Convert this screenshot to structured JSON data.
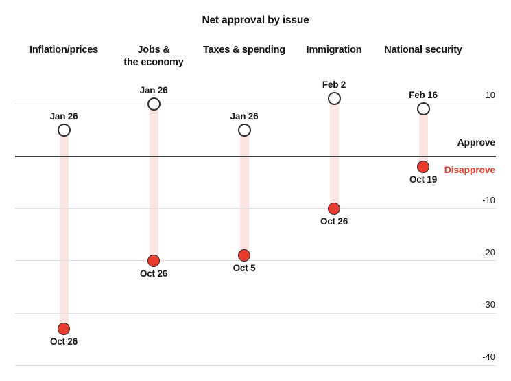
{
  "title": "Net approval by issue",
  "colors": {
    "red": "#e73b2d",
    "band_pink": "#fbe5e2",
    "gridline": "#e0e0e0",
    "zero_line": "#3d3d3d",
    "text": "#141414"
  },
  "axis": {
    "approve_label": "Approve",
    "disapprove_label": "Disapprove"
  },
  "chart_data": {
    "type": "dumbbell",
    "title": "Net approval by issue",
    "ylim": [
      -42,
      13
    ],
    "yticks": [
      {
        "value": 10,
        "label": "10"
      },
      {
        "value": -10,
        "label": "-10"
      },
      {
        "value": -20,
        "label": "-20"
      },
      {
        "value": -30,
        "label": "-30"
      },
      {
        "value": -40,
        "label": "-40"
      }
    ],
    "zero_line_value": 0,
    "legend": {
      "above_zero": "Approve",
      "below_zero": "Disapprove"
    },
    "categories": [
      "Inflation/prices",
      "Jobs & the economy",
      "Taxes & spending",
      "Immigration",
      "National security"
    ],
    "series": [
      {
        "issue": "Inflation/prices",
        "header_lines": "Inflation/prices",
        "start": {
          "date": "Jan 26",
          "value": 5
        },
        "end": {
          "date": "Oct 26",
          "value": -33
        }
      },
      {
        "issue": "Jobs & the economy",
        "header_lines": "Jobs &\nthe economy",
        "start": {
          "date": "Jan 26",
          "value": 10
        },
        "end": {
          "date": "Oct 26",
          "value": -20
        }
      },
      {
        "issue": "Taxes & spending",
        "header_lines": "Taxes & spending",
        "start": {
          "date": "Jan 26",
          "value": 5
        },
        "end": {
          "date": "Oct 5",
          "value": -19
        }
      },
      {
        "issue": "Immigration",
        "header_lines": "Immigration",
        "start": {
          "date": "Feb 2",
          "value": 11
        },
        "end": {
          "date": "Oct 26",
          "value": -10
        }
      },
      {
        "issue": "National security",
        "header_lines": "National security",
        "start": {
          "date": "Feb 16",
          "value": 9
        },
        "end": {
          "date": "Oct 19",
          "value": -2
        }
      }
    ],
    "marker_semantics": {
      "open_circle": "earlier reading",
      "filled_red_circle": "latest reading"
    }
  }
}
